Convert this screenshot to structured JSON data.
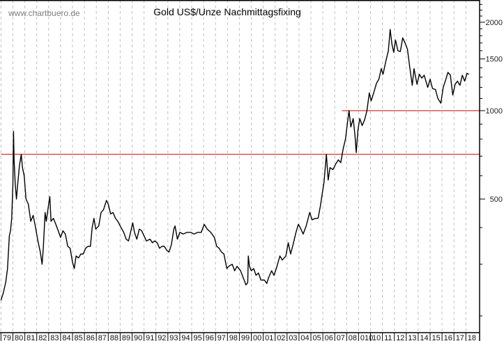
{
  "watermark": "www.chartbuero.de",
  "chart_data": {
    "type": "line",
    "title": "Gold US$/Unze Nachmittagsfixing",
    "xlabel": "",
    "ylabel": "",
    "yscale": "log",
    "ylim": [
      175,
      2380
    ],
    "xlim": [
      1979,
      2018.5
    ],
    "grid": "vertical dashed, yearly",
    "y_ticks": [
      2000,
      1500,
      1000,
      500
    ],
    "y_minor_step": 100,
    "x_tick_labels": [
      "79",
      "80",
      "81",
      "82",
      "83",
      "84",
      "85",
      "86",
      "87",
      "88",
      "89",
      "90",
      "91",
      "92",
      "93",
      "94",
      "95",
      "96",
      "97",
      "98",
      "99",
      "00",
      "01",
      "02",
      "03",
      "04",
      "05",
      "06",
      "07",
      "08",
      "010",
      "10",
      "11",
      "12",
      "13",
      "14",
      "15",
      "16",
      "17",
      "18"
    ],
    "reference_lines": [
      {
        "value": 710,
        "from": 1979,
        "color": "#cc0000"
      },
      {
        "value": 1000,
        "from": 2007.6,
        "color": "#cc0000"
      }
    ],
    "series_color": "#000000",
    "x": [
      1979.0,
      1979.2,
      1979.4,
      1979.55,
      1979.7,
      1979.8,
      1979.9,
      1980.0,
      1980.05,
      1980.1,
      1980.2,
      1980.3,
      1980.4,
      1980.55,
      1980.7,
      1980.8,
      1980.95,
      1981.1,
      1981.3,
      1981.5,
      1981.7,
      1981.9,
      1982.1,
      1982.3,
      1982.45,
      1982.55,
      1982.7,
      1982.8,
      1983.0,
      1983.1,
      1983.2,
      1983.4,
      1983.6,
      1983.8,
      1984.0,
      1984.2,
      1984.4,
      1984.6,
      1984.8,
      1985.0,
      1985.15,
      1985.3,
      1985.5,
      1985.7,
      1985.9,
      1986.1,
      1986.3,
      1986.5,
      1986.65,
      1986.8,
      1986.95,
      1987.2,
      1987.4,
      1987.6,
      1987.85,
      1988.0,
      1988.2,
      1988.4,
      1988.6,
      1988.8,
      1989.0,
      1989.3,
      1989.5,
      1989.7,
      1989.9,
      1990.05,
      1990.2,
      1990.4,
      1990.6,
      1990.8,
      1991.0,
      1991.2,
      1991.5,
      1991.7,
      1991.9,
      1992.1,
      1992.3,
      1992.5,
      1992.7,
      1992.9,
      1993.1,
      1993.3,
      1993.5,
      1993.6,
      1993.8,
      1994.0,
      1994.3,
      1994.6,
      1994.9,
      1995.2,
      1995.5,
      1995.8,
      1996.05,
      1996.3,
      1996.6,
      1996.9,
      1997.1,
      1997.3,
      1997.5,
      1997.7,
      1997.95,
      1998.1,
      1998.4,
      1998.6,
      1998.8,
      1999.1,
      1999.4,
      1999.55,
      1999.7,
      1999.75,
      1999.85,
      2000.0,
      2000.2,
      2000.4,
      2000.6,
      2000.8,
      2001.1,
      2001.3,
      2001.45,
      2001.7,
      2001.9,
      2002.1,
      2002.4,
      2002.6,
      2002.9,
      2003.1,
      2003.3,
      2003.5,
      2003.75,
      2003.95,
      2004.1,
      2004.35,
      2004.6,
      2004.9,
      2005.1,
      2005.4,
      2005.6,
      2005.8,
      2005.95,
      2006.1,
      2006.3,
      2006.45,
      2006.6,
      2006.85,
      2007.1,
      2007.3,
      2007.5,
      2007.7,
      2007.9,
      2008.05,
      2008.2,
      2008.35,
      2008.55,
      2008.7,
      2008.8,
      2008.95,
      2009.1,
      2009.3,
      2009.5,
      2009.7,
      2009.9,
      2010.05,
      2010.3,
      2010.5,
      2010.7,
      2010.9,
      2011.05,
      2011.3,
      2011.5,
      2011.65,
      2011.8,
      2011.95,
      2012.1,
      2012.3,
      2012.5,
      2012.7,
      2012.9,
      2013.1,
      2013.3,
      2013.5,
      2013.65,
      2013.9,
      2014.1,
      2014.3,
      2014.5,
      2014.8,
      2015.0,
      2015.2,
      2015.45,
      2015.65,
      2015.9,
      2016.1,
      2016.3,
      2016.5,
      2016.7,
      2016.9,
      2017.1,
      2017.3,
      2017.5,
      2017.7,
      2017.9,
      2018.1,
      2018.25
    ],
    "values": [
      226,
      240,
      260,
      290,
      375,
      390,
      430,
      560,
      850,
      680,
      560,
      500,
      560,
      650,
      710,
      640,
      600,
      500,
      480,
      420,
      440,
      400,
      360,
      330,
      300,
      340,
      450,
      420,
      480,
      510,
      420,
      430,
      410,
      390,
      370,
      390,
      380,
      345,
      340,
      305,
      290,
      320,
      315,
      325,
      325,
      340,
      345,
      345,
      400,
      430,
      395,
      405,
      450,
      460,
      495,
      480,
      445,
      450,
      430,
      420,
      405,
      385,
      365,
      360,
      390,
      415,
      385,
      365,
      395,
      390,
      375,
      360,
      365,
      355,
      360,
      355,
      340,
      345,
      345,
      335,
      330,
      350,
      395,
      405,
      365,
      385,
      380,
      385,
      385,
      380,
      385,
      385,
      410,
      395,
      385,
      370,
      345,
      340,
      330,
      325,
      290,
      295,
      300,
      285,
      295,
      285,
      265,
      255,
      260,
      320,
      295,
      285,
      290,
      275,
      280,
      265,
      265,
      258,
      270,
      285,
      275,
      290,
      320,
      310,
      320,
      355,
      325,
      350,
      385,
      410,
      400,
      380,
      405,
      450,
      425,
      430,
      430,
      475,
      520,
      570,
      710,
      580,
      640,
      630,
      660,
      680,
      665,
      740,
      800,
      900,
      1000,
      880,
      940,
      820,
      720,
      860,
      940,
      890,
      930,
      1000,
      1150,
      1080,
      1160,
      1240,
      1280,
      1390,
      1330,
      1480,
      1600,
      1890,
      1680,
      1580,
      1740,
      1600,
      1590,
      1770,
      1700,
      1620,
      1400,
      1220,
      1390,
      1230,
      1330,
      1290,
      1320,
      1200,
      1280,
      1190,
      1180,
      1100,
      1060,
      1200,
      1270,
      1350,
      1320,
      1130,
      1230,
      1260,
      1220,
      1320,
      1260,
      1340,
      1330
    ]
  }
}
